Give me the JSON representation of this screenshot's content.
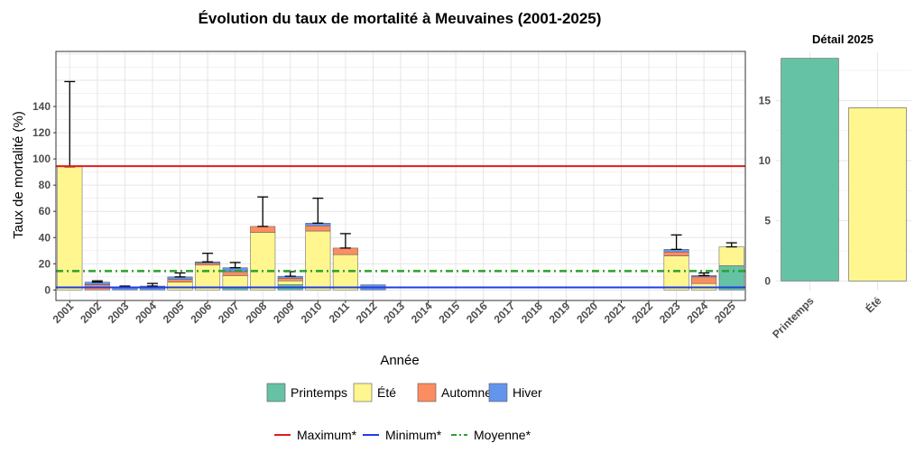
{
  "chart_data": [
    {
      "type": "bar",
      "stacked": true,
      "title": "Évolution du taux de mortalité à Meuvaines (2001-2025)",
      "xlabel": "Année",
      "ylabel": "Taux de mortalité (%)",
      "ylim": [
        -8,
        182
      ],
      "yticks": [
        0,
        20,
        40,
        60,
        80,
        100,
        120,
        140
      ],
      "grid": true,
      "categories": [
        "2001",
        "2002",
        "2003",
        "2004",
        "2005",
        "2006",
        "2007",
        "2008",
        "2009",
        "2010",
        "2011",
        "2012",
        "2013",
        "2014",
        "2015",
        "2016",
        "2017",
        "2018",
        "2019",
        "2020",
        "2021",
        "2022",
        "2023",
        "2024",
        "2025"
      ],
      "series": [
        {
          "name": "Printemps",
          "color": "#66C2A5",
          "values": [
            0,
            0,
            0,
            0,
            0,
            0,
            2,
            0,
            4,
            0,
            0,
            0,
            0,
            0,
            0,
            0,
            0,
            0,
            0,
            0,
            0,
            0,
            0,
            0,
            18.5
          ]
        },
        {
          "name": "Été",
          "color": "#FFF68F",
          "values": [
            94,
            0,
            0,
            0,
            6,
            19,
            9,
            44,
            3,
            45,
            27,
            0,
            0,
            0,
            0,
            0,
            0,
            0,
            0,
            0,
            0,
            0,
            26,
            5,
            14.4
          ]
        },
        {
          "name": "Automne",
          "color": "#FC8D62",
          "values": [
            0,
            4,
            0,
            0,
            2,
            1.5,
            3,
            4.5,
            2,
            4,
            5,
            0,
            0,
            0,
            0,
            0,
            0,
            0,
            0,
            0,
            0,
            0,
            3,
            5,
            0
          ]
        },
        {
          "name": "Hiver",
          "color": "#6495ED",
          "values": [
            0,
            2,
            2,
            3,
            2,
            1,
            3,
            0,
            1.5,
            2,
            0,
            4,
            0,
            0,
            0,
            0,
            0,
            0,
            0,
            0,
            0,
            0,
            2,
            1,
            0
          ]
        }
      ],
      "error_bars": [
        159,
        7,
        3,
        5,
        13,
        28,
        21,
        71,
        14,
        70,
        43,
        4,
        0,
        0,
        0,
        0,
        0,
        0,
        0,
        0,
        0,
        0,
        42,
        13,
        36
      ],
      "reference_lines": [
        {
          "name": "Maximum*",
          "value": 94.5,
          "color": "#E41A1C",
          "style": "solid"
        },
        {
          "name": "Minimum*",
          "value": 2,
          "color": "#1F3FE0",
          "style": "solid"
        },
        {
          "name": "Moyenne*",
          "value": 14.5,
          "color": "#2CA02C",
          "style": "dashdot"
        }
      ],
      "legend_placement": "bottom"
    },
    {
      "type": "bar",
      "title": "Détail 2025",
      "categories": [
        "Printemps",
        "Été"
      ],
      "values": [
        18.5,
        14.4
      ],
      "colors": [
        "#66C2A5",
        "#FFF68F"
      ],
      "ylim": [
        -0.8,
        19
      ],
      "yticks": [
        0,
        5,
        10,
        15
      ],
      "grid": true
    }
  ]
}
